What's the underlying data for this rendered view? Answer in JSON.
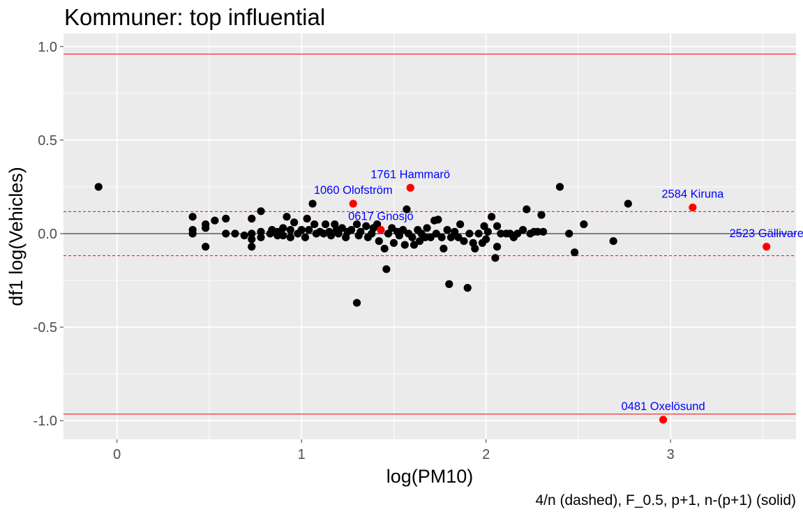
{
  "chart_data": {
    "type": "scatter",
    "title": "Kommuner: top influential",
    "xlabel": "log(PM10)",
    "ylabel": "df1 log(Vehicles)",
    "caption": "4/n (dashed), F_0.5, p+1, n-(p+1) (solid)",
    "xlim": [
      -0.29,
      3.68
    ],
    "ylim": [
      -1.1,
      1.07
    ],
    "x_ticks": [
      0,
      1,
      2,
      3
    ],
    "x_tick_labels": [
      "0",
      "1",
      "2",
      "3"
    ],
    "y_ticks": [
      -1.0,
      -0.5,
      0.0,
      0.5,
      1.0
    ],
    "y_tick_labels": [
      "-1.0",
      "-0.5",
      "0.0",
      "0.5",
      "1.0"
    ],
    "grid": true,
    "colors": {
      "panel_background": "#ebebeb",
      "grid": "#ffffff",
      "points": "#000000",
      "highlight": "#ff0000",
      "labels": "#0000ff",
      "cutoff_lines": "#ff0000",
      "zero_line": "#000000"
    },
    "reference_lines": {
      "zero": 0.0,
      "dashed": [
        0.118,
        -0.118
      ],
      "solid": [
        0.96,
        -0.965
      ]
    },
    "points": [
      [
        -0.1,
        0.25
      ],
      [
        0.41,
        0.09
      ],
      [
        0.41,
        0.02
      ],
      [
        0.41,
        0.0
      ],
      [
        0.48,
        0.05
      ],
      [
        0.48,
        0.03
      ],
      [
        0.48,
        -0.07
      ],
      [
        0.53,
        0.07
      ],
      [
        0.59,
        0.08
      ],
      [
        0.59,
        0.0
      ],
      [
        0.64,
        0.0
      ],
      [
        0.69,
        -0.01
      ],
      [
        0.73,
        0.08
      ],
      [
        0.73,
        0.0
      ],
      [
        0.73,
        -0.03
      ],
      [
        0.73,
        -0.07
      ],
      [
        0.78,
        0.12
      ],
      [
        0.78,
        0.01
      ],
      [
        0.78,
        -0.02
      ],
      [
        0.83,
        0.0
      ],
      [
        0.84,
        0.02
      ],
      [
        0.87,
        0.01
      ],
      [
        0.87,
        -0.01
      ],
      [
        0.9,
        0.03
      ],
      [
        0.9,
        -0.01
      ],
      [
        0.92,
        0.09
      ],
      [
        0.94,
        0.02
      ],
      [
        0.94,
        -0.02
      ],
      [
        0.96,
        0.06
      ],
      [
        0.98,
        0.0
      ],
      [
        1.0,
        0.02
      ],
      [
        1.02,
        -0.02
      ],
      [
        1.03,
        0.08
      ],
      [
        1.04,
        0.02
      ],
      [
        1.06,
        0.16
      ],
      [
        1.07,
        0.05
      ],
      [
        1.08,
        0.0
      ],
      [
        1.1,
        0.01
      ],
      [
        1.12,
        0.0
      ],
      [
        1.13,
        0.05
      ],
      [
        1.15,
        0.01
      ],
      [
        1.16,
        -0.01
      ],
      [
        1.18,
        0.05
      ],
      [
        1.19,
        0.02
      ],
      [
        1.2,
        0.0
      ],
      [
        1.22,
        0.03
      ],
      [
        1.24,
        -0.02
      ],
      [
        1.25,
        0.01
      ],
      [
        1.27,
        0.02
      ],
      [
        1.3,
        0.05
      ],
      [
        1.31,
        -0.01
      ],
      [
        1.3,
        -0.37
      ],
      [
        1.32,
        0.01
      ],
      [
        1.35,
        0.04
      ],
      [
        1.36,
        -0.02
      ],
      [
        1.38,
        0.0
      ],
      [
        1.39,
        0.03
      ],
      [
        1.41,
        0.05
      ],
      [
        1.42,
        -0.04
      ],
      [
        1.45,
        -0.08
      ],
      [
        1.46,
        -0.19
      ],
      [
        1.47,
        0.0
      ],
      [
        1.49,
        0.03
      ],
      [
        1.5,
        -0.05
      ],
      [
        1.52,
        0.01
      ],
      [
        1.53,
        -0.01
      ],
      [
        1.55,
        0.02
      ],
      [
        1.56,
        -0.06
      ],
      [
        1.57,
        0.13
      ],
      [
        1.58,
        0.0
      ],
      [
        1.6,
        -0.02
      ],
      [
        1.61,
        -0.06
      ],
      [
        1.63,
        0.02
      ],
      [
        1.64,
        -0.04
      ],
      [
        1.65,
        0.0
      ],
      [
        1.67,
        -0.02
      ],
      [
        1.68,
        0.03
      ],
      [
        1.7,
        -0.02
      ],
      [
        1.72,
        0.07
      ],
      [
        1.73,
        0.0
      ],
      [
        1.74,
        0.075
      ],
      [
        1.76,
        -0.02
      ],
      [
        1.77,
        -0.08
      ],
      [
        1.79,
        0.02
      ],
      [
        1.8,
        -0.27
      ],
      [
        1.81,
        -0.02
      ],
      [
        1.83,
        0.01
      ],
      [
        1.85,
        -0.02
      ],
      [
        1.86,
        0.05
      ],
      [
        1.88,
        -0.04
      ],
      [
        1.9,
        -0.29
      ],
      [
        1.91,
        0.0
      ],
      [
        1.93,
        -0.05
      ],
      [
        1.94,
        -0.08
      ],
      [
        1.96,
        0.0
      ],
      [
        1.98,
        -0.05
      ],
      [
        1.99,
        0.04
      ],
      [
        2.0,
        -0.03
      ],
      [
        2.01,
        0.01
      ],
      [
        2.03,
        0.09
      ],
      [
        2.05,
        -0.13
      ],
      [
        2.06,
        -0.07
      ],
      [
        2.06,
        0.04
      ],
      [
        2.08,
        0.0
      ],
      [
        2.11,
        0.0
      ],
      [
        2.13,
        0.0
      ],
      [
        2.15,
        -0.02
      ],
      [
        2.17,
        0.0
      ],
      [
        2.2,
        0.02
      ],
      [
        2.22,
        0.13
      ],
      [
        2.24,
        0.0
      ],
      [
        2.26,
        0.01
      ],
      [
        2.28,
        0.01
      ],
      [
        2.3,
        0.1
      ],
      [
        2.31,
        0.01
      ],
      [
        2.4,
        0.25
      ],
      [
        2.45,
        0.0
      ],
      [
        2.48,
        -0.1
      ],
      [
        2.53,
        0.05
      ],
      [
        2.69,
        -0.04
      ],
      [
        2.77,
        0.16
      ]
    ],
    "highlighted": [
      {
        "label": "1761 Hammarö",
        "x": 1.59,
        "y": 0.245
      },
      {
        "label": "1060 Olofström",
        "x": 1.28,
        "y": 0.16
      },
      {
        "label": "0617 Gnosjö",
        "x": 1.43,
        "y": 0.02
      },
      {
        "label": "2584 Kiruna",
        "x": 3.12,
        "y": 0.14
      },
      {
        "label": "2523 Gällivare",
        "x": 3.52,
        "y": -0.07
      },
      {
        "label": "0481 Oxelösund",
        "x": 2.96,
        "y": -0.995
      }
    ]
  }
}
